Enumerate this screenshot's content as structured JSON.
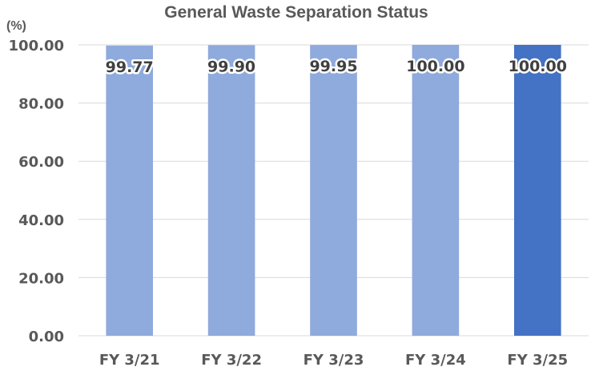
{
  "chart_data": {
    "type": "bar",
    "title": "General Waste Separation Status",
    "ylabel": "(%)",
    "xlabel": "",
    "categories": [
      "FY 3/21",
      "FY 3/22",
      "FY 3/23",
      "FY 3/24",
      "FY 3/25"
    ],
    "values": [
      99.77,
      99.9,
      99.95,
      100.0,
      100.0
    ],
    "value_labels": [
      "99.77",
      "99.90",
      "99.95",
      "100.00",
      "100.00"
    ],
    "ylim": [
      0,
      100
    ],
    "yticks": [
      0,
      20,
      40,
      60,
      80,
      100
    ],
    "ytick_labels": [
      "0.00",
      "20.00",
      "40.00",
      "60.00",
      "80.00",
      "100.00"
    ],
    "grid": true,
    "legend": "none",
    "colors": {
      "bar": "#8faadc",
      "highlight_bar": "#4472c4",
      "highlight_index": 4
    }
  }
}
